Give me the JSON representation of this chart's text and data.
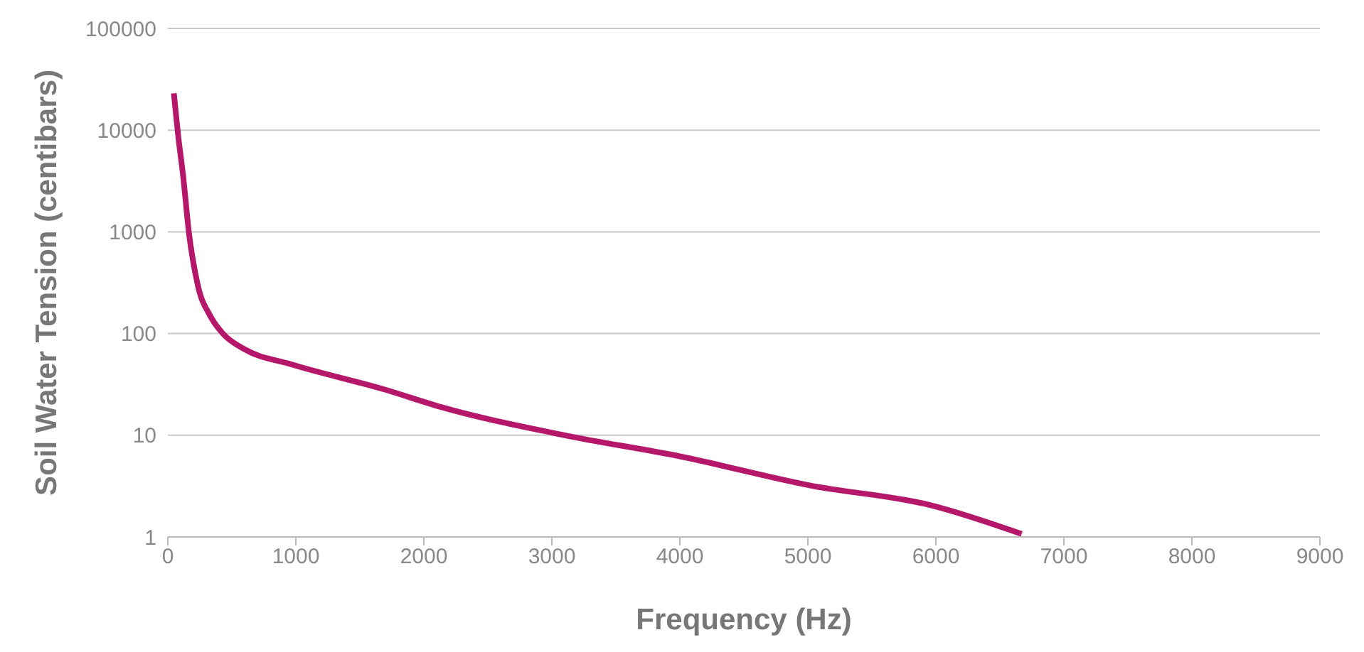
{
  "chart_data": {
    "type": "line",
    "xlabel": "Frequency (Hz)",
    "ylabel": "Soil Water Tension (centibars)",
    "x": [
      47,
      80,
      120,
      164,
      234,
      330,
      430,
      600,
      960,
      1700,
      2130,
      3100,
      4000,
      5020,
      5960,
      6670
    ],
    "series": [
      {
        "color": "#b5186b",
        "values": [
          23000,
          9000,
          3500,
          1000,
          300,
          150,
          100,
          70,
          50,
          28,
          19,
          10,
          6.2,
          3.2,
          2.05,
          1.07
        ]
      }
    ],
    "xlim": [
      0,
      9000
    ],
    "xticks": [
      0,
      1000,
      2000,
      3000,
      4000,
      5000,
      6000,
      7000,
      8000,
      9000
    ],
    "ylim": [
      1,
      100000
    ],
    "yticks": [
      1,
      10,
      100,
      1000,
      10000,
      100000
    ],
    "log": "y",
    "grid": "y",
    "marker": "none",
    "line_style": "solid"
  }
}
